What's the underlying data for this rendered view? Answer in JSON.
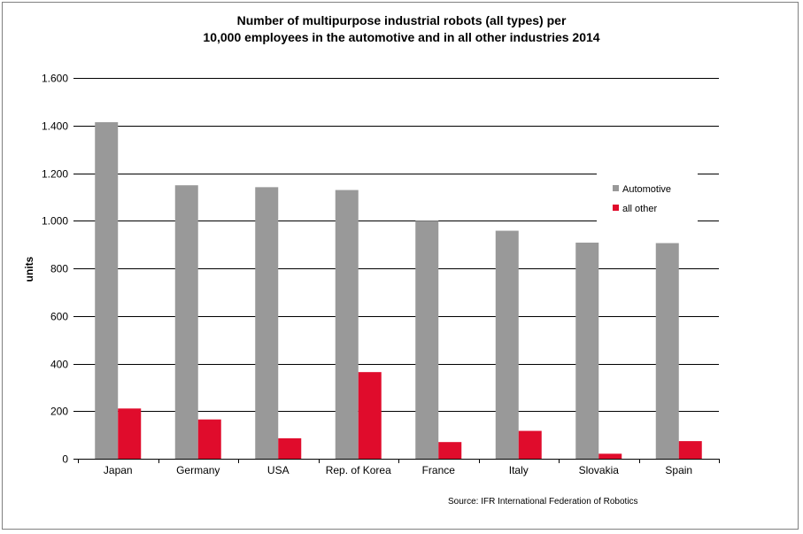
{
  "chart_data": {
    "type": "bar",
    "title_line1": "Number of multipurpose industrial robots (all types) per",
    "title_line2": "10,000 employees in the automotive and in all other industries 2014",
    "ylabel": "units",
    "xlabel": "",
    "ylim": [
      0,
      1600
    ],
    "ytick_labels": [
      "0",
      "200",
      "400",
      "600",
      "800",
      "1.000",
      "1.200",
      "1.400",
      "1.600"
    ],
    "ytick_values": [
      0,
      200,
      400,
      600,
      800,
      1000,
      1200,
      1400,
      1600
    ],
    "grid": true,
    "legend_placement": "right",
    "categories": [
      "Japan",
      "Germany",
      "USA",
      "Rep. of Korea",
      "France",
      "Italy",
      "Slovakia",
      "Spain"
    ],
    "series": [
      {
        "name": "Automotive",
        "color": "#999999",
        "values": [
          1414,
          1149,
          1141,
          1129,
          1000,
          958,
          908,
          906
        ]
      },
      {
        "name": "all other",
        "color": "#e00c2c",
        "values": [
          211,
          165,
          86,
          364,
          70,
          117,
          21,
          74
        ]
      }
    ],
    "source": "Source: IFR  International Federation of Robotics"
  }
}
